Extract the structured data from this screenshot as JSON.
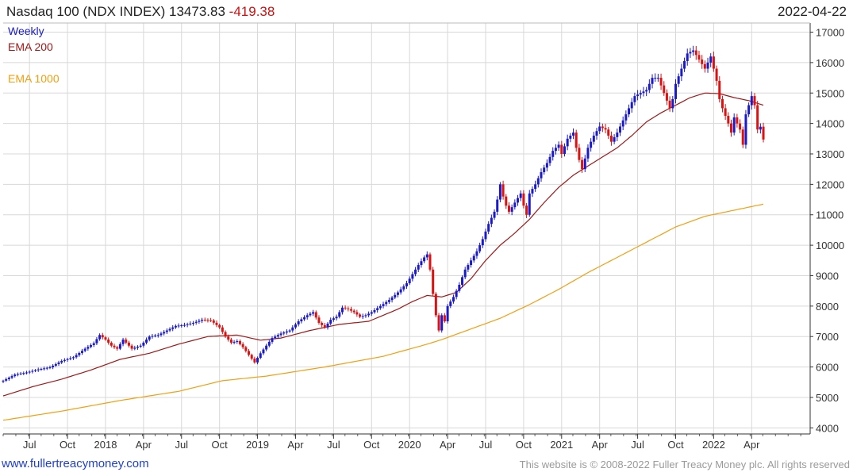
{
  "header": {
    "title": "Nasdaq 100 (NDX INDEX) 13473.83",
    "change": "-419.38",
    "date": "2022-04-22"
  },
  "legend": {
    "weekly": "Weekly",
    "ema200": "EMA 200",
    "ema1000": "EMA 1000"
  },
  "footer": {
    "site": "www.fullertreacymoney.com",
    "copyright": "This website is © 2008-2022 Fuller Treacy Money plc. All rights reserved"
  },
  "colors": {
    "up": "#1a1acc",
    "down": "#dd1111",
    "ema200": "#a01818",
    "ema1000": "#f0a010",
    "grid": "#d8d8d8"
  },
  "chart_data": {
    "type": "candlestick",
    "title": "Nasdaq 100 (NDX INDEX)",
    "frequency": "Weekly",
    "ylim": [
      3800,
      17300
    ],
    "y_ticks": [
      4000,
      5000,
      6000,
      7000,
      8000,
      9000,
      10000,
      11000,
      12000,
      13000,
      14000,
      15000,
      16000,
      17000
    ],
    "x_range": [
      0,
      276
    ],
    "x_ticks": [
      {
        "label": "Jul",
        "x": 9
      },
      {
        "label": "Oct",
        "x": 22
      },
      {
        "label": "2018",
        "x": 35
      },
      {
        "label": "Apr",
        "x": 48
      },
      {
        "label": "Jul",
        "x": 61
      },
      {
        "label": "Oct",
        "x": 74
      },
      {
        "label": "2019",
        "x": 87
      },
      {
        "label": "Apr",
        "x": 100
      },
      {
        "label": "Jul",
        "x": 113
      },
      {
        "label": "Oct",
        "x": 126
      },
      {
        "label": "2020",
        "x": 139
      },
      {
        "label": "Apr",
        "x": 152
      },
      {
        "label": "Jul",
        "x": 165
      },
      {
        "label": "Oct",
        "x": 178
      },
      {
        "label": "2021",
        "x": 191
      },
      {
        "label": "Apr",
        "x": 204
      },
      {
        "label": "Jul",
        "x": 217
      },
      {
        "label": "Oct",
        "x": 230
      },
      {
        "label": "2022",
        "x": 243
      },
      {
        "label": "Apr",
        "x": 256
      }
    ],
    "close_anchors": [
      [
        0,
        5550
      ],
      [
        4,
        5750
      ],
      [
        8,
        5820
      ],
      [
        12,
        5920
      ],
      [
        16,
        5990
      ],
      [
        20,
        6200
      ],
      [
        24,
        6320
      ],
      [
        28,
        6600
      ],
      [
        31,
        6780
      ],
      [
        33,
        7050
      ],
      [
        35,
        6900
      ],
      [
        37,
        6700
      ],
      [
        39,
        6600
      ],
      [
        41,
        6900
      ],
      [
        44,
        6600
      ],
      [
        47,
        6700
      ],
      [
        50,
        7000
      ],
      [
        53,
        7050
      ],
      [
        56,
        7200
      ],
      [
        59,
        7350
      ],
      [
        62,
        7380
      ],
      [
        65,
        7450
      ],
      [
        68,
        7550
      ],
      [
        71,
        7530
      ],
      [
        74,
        7300
      ],
      [
        76,
        7000
      ],
      [
        78,
        6800
      ],
      [
        80,
        6850
      ],
      [
        82,
        6650
      ],
      [
        84,
        6400
      ],
      [
        86,
        6150
      ],
      [
        88,
        6450
      ],
      [
        90,
        6700
      ],
      [
        92,
        6950
      ],
      [
        95,
        7100
      ],
      [
        98,
        7200
      ],
      [
        101,
        7500
      ],
      [
        104,
        7700
      ],
      [
        106,
        7800
      ],
      [
        108,
        7450
      ],
      [
        110,
        7300
      ],
      [
        112,
        7550
      ],
      [
        114,
        7650
      ],
      [
        116,
        7950
      ],
      [
        118,
        7900
      ],
      [
        120,
        7800
      ],
      [
        122,
        7650
      ],
      [
        124,
        7700
      ],
      [
        126,
        7800
      ],
      [
        129,
        8000
      ],
      [
        132,
        8200
      ],
      [
        135,
        8450
      ],
      [
        138,
        8750
      ],
      [
        140,
        9050
      ],
      [
        142,
        9350
      ],
      [
        144,
        9600
      ],
      [
        145,
        9700
      ],
      [
        146,
        9200
      ],
      [
        147,
        8400
      ],
      [
        148,
        7700
      ],
      [
        149,
        7200
      ],
      [
        150,
        7700
      ],
      [
        151,
        7500
      ],
      [
        152,
        8000
      ],
      [
        154,
        8300
      ],
      [
        156,
        8700
      ],
      [
        158,
        9200
      ],
      [
        160,
        9500
      ],
      [
        162,
        9800
      ],
      [
        164,
        10200
      ],
      [
        166,
        10700
      ],
      [
        168,
        11100
      ],
      [
        169,
        11500
      ],
      [
        170,
        12000
      ],
      [
        171,
        11600
      ],
      [
        172,
        11300
      ],
      [
        173,
        11100
      ],
      [
        175,
        11400
      ],
      [
        177,
        11700
      ],
      [
        178,
        11300
      ],
      [
        179,
        11000
      ],
      [
        180,
        11700
      ],
      [
        182,
        12000
      ],
      [
        184,
        12400
      ],
      [
        186,
        12700
      ],
      [
        188,
        13100
      ],
      [
        190,
        13300
      ],
      [
        191,
        13000
      ],
      [
        193,
        13500
      ],
      [
        195,
        13700
      ],
      [
        196,
        13200
      ],
      [
        197,
        12800
      ],
      [
        198,
        12500
      ],
      [
        200,
        13200
      ],
      [
        202,
        13600
      ],
      [
        204,
        13900
      ],
      [
        206,
        13800
      ],
      [
        208,
        13400
      ],
      [
        210,
        13700
      ],
      [
        212,
        14100
      ],
      [
        214,
        14500
      ],
      [
        216,
        14900
      ],
      [
        218,
        15000
      ],
      [
        220,
        15100
      ],
      [
        222,
        15500
      ],
      [
        224,
        15500
      ],
      [
        226,
        15000
      ],
      [
        228,
        14500
      ],
      [
        229,
        14800
      ],
      [
        230,
        15300
      ],
      [
        232,
        15800
      ],
      [
        234,
        16300
      ],
      [
        236,
        16400
      ],
      [
        238,
        16100
      ],
      [
        240,
        15800
      ],
      [
        242,
        16200
      ],
      [
        244,
        15400
      ],
      [
        245,
        14800
      ],
      [
        246,
        14500
      ],
      [
        248,
        14000
      ],
      [
        249,
        13700
      ],
      [
        250,
        14200
      ],
      [
        252,
        13800
      ],
      [
        253,
        13300
      ],
      [
        254,
        14300
      ],
      [
        256,
        14900
      ],
      [
        257,
        14600
      ],
      [
        258,
        13800
      ],
      [
        259,
        13894
      ],
      [
        260,
        13473
      ]
    ],
    "ema200_anchors": [
      [
        0,
        5050
      ],
      [
        10,
        5350
      ],
      [
        20,
        5600
      ],
      [
        30,
        5900
      ],
      [
        40,
        6250
      ],
      [
        50,
        6450
      ],
      [
        60,
        6750
      ],
      [
        70,
        7000
      ],
      [
        80,
        7050
      ],
      [
        88,
        6880
      ],
      [
        95,
        6950
      ],
      [
        105,
        7200
      ],
      [
        115,
        7400
      ],
      [
        125,
        7500
      ],
      [
        135,
        7900
      ],
      [
        140,
        8150
      ],
      [
        145,
        8350
      ],
      [
        150,
        8300
      ],
      [
        155,
        8450
      ],
      [
        160,
        8900
      ],
      [
        165,
        9500
      ],
      [
        170,
        10000
      ],
      [
        175,
        10400
      ],
      [
        180,
        10850
      ],
      [
        185,
        11400
      ],
      [
        190,
        11900
      ],
      [
        195,
        12300
      ],
      [
        200,
        12600
      ],
      [
        205,
        12900
      ],
      [
        210,
        13200
      ],
      [
        215,
        13600
      ],
      [
        220,
        14050
      ],
      [
        225,
        14350
      ],
      [
        230,
        14600
      ],
      [
        235,
        14850
      ],
      [
        240,
        15000
      ],
      [
        245,
        14980
      ],
      [
        250,
        14850
      ],
      [
        255,
        14750
      ],
      [
        260,
        14600
      ]
    ],
    "ema1000_anchors": [
      [
        0,
        4250
      ],
      [
        20,
        4550
      ],
      [
        40,
        4900
      ],
      [
        60,
        5200
      ],
      [
        75,
        5550
      ],
      [
        90,
        5700
      ],
      [
        110,
        6000
      ],
      [
        130,
        6350
      ],
      [
        145,
        6750
      ],
      [
        150,
        6900
      ],
      [
        160,
        7250
      ],
      [
        170,
        7600
      ],
      [
        180,
        8050
      ],
      [
        190,
        8550
      ],
      [
        200,
        9100
      ],
      [
        210,
        9600
      ],
      [
        220,
        10100
      ],
      [
        230,
        10600
      ],
      [
        240,
        10950
      ],
      [
        250,
        11150
      ],
      [
        260,
        11350
      ]
    ]
  }
}
